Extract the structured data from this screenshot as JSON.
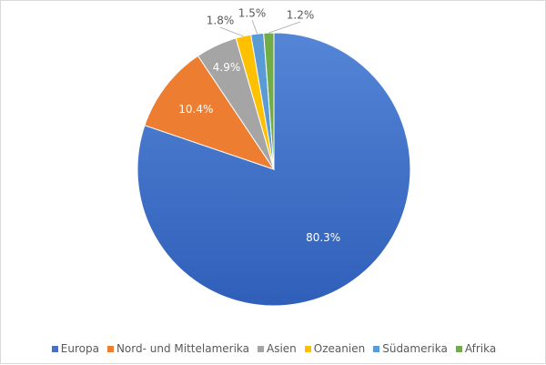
{
  "chart_data": {
    "type": "pie",
    "categories": [
      "Europa",
      "Nord- und Mittelamerika",
      "Asien",
      "Ozeanien",
      "Südamerika",
      "Afrika"
    ],
    "values": [
      80.3,
      10.4,
      4.9,
      1.8,
      1.5,
      1.2
    ],
    "labels": [
      "80.3%",
      "10.4%",
      "4.9%",
      "1.8%",
      "1.5%",
      "1.2%"
    ],
    "colors": [
      "#4472c4",
      "#ed7d31",
      "#a5a5a5",
      "#ffc000",
      "#5b9bd5",
      "#70ad47"
    ],
    "start": "12 o'clock, clockwise",
    "legend_position": "bottom",
    "title": ""
  }
}
